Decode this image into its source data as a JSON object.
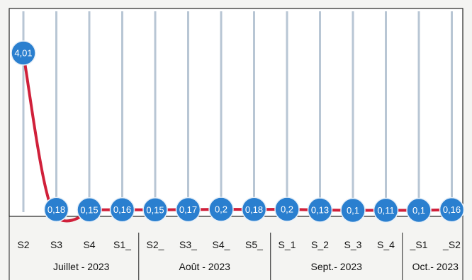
{
  "chart_data": {
    "type": "line",
    "title": "",
    "xlabel": "",
    "ylabel": "",
    "categories": [
      "S2",
      "S3",
      "S4",
      "S1_",
      "S2_",
      "S3_",
      "S4_",
      "S5_",
      "S_1",
      "S_2",
      "S_3",
      "S_4",
      "_S1",
      "_S2"
    ],
    "series": [
      {
        "values": [
          4.01,
          0.18,
          0.15,
          0.16,
          0.15,
          0.17,
          0.2,
          0.18,
          0.2,
          0.13,
          0.1,
          0.11,
          0.1,
          0.16
        ],
        "labels": [
          "4,01",
          "0,18",
          "0,15",
          "0,16",
          "0,15",
          "0,17",
          "0,2",
          "0,18",
          "0,2",
          "0,13",
          "0,1",
          "0,11",
          "0,1",
          "0,16"
        ]
      }
    ],
    "groups": [
      {
        "label": "Juillet - 2023",
        "start": 0,
        "end": 3
      },
      {
        "label": "Août - 2023",
        "start": 4,
        "end": 7
      },
      {
        "label": "Sept.- 2023",
        "start": 8,
        "end": 11
      },
      {
        "label": "Oct.- 2023",
        "start": 12,
        "end": 13
      }
    ],
    "grid": true,
    "legend": "none",
    "colors": {
      "line": "#d0203a",
      "marker": "#2a7fcf",
      "marker_stroke": "#e8f0f8",
      "gridline": "#b8c6d4",
      "label_text": "#ffffff"
    }
  }
}
